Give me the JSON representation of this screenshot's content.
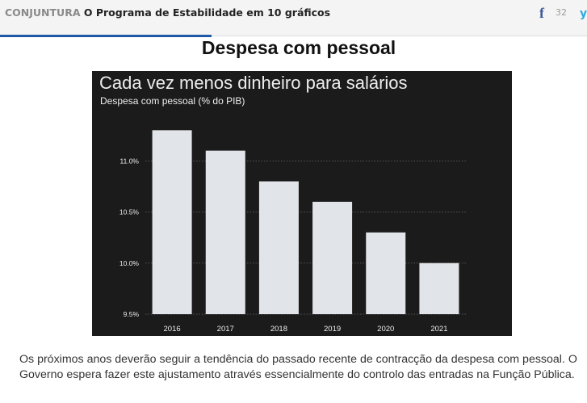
{
  "header": {
    "section": "CONJUNTURA",
    "title": "O Programa de Estabilidade em 10 gráficos",
    "facebook_count": "32"
  },
  "page_title": "Despesa com pessoal",
  "chart_data": {
    "type": "bar",
    "title": "Cada vez menos dinheiro para salários",
    "ylabel": "Despesa com pessoal (% do PIB)",
    "xlabel": "",
    "categories": [
      "2016",
      "2017",
      "2018",
      "2019",
      "2020",
      "2021"
    ],
    "values": [
      11.3,
      11.1,
      10.8,
      10.6,
      10.3,
      10.0
    ],
    "ylim": [
      9.5,
      11.5
    ],
    "yticks": [
      9.5,
      10.0,
      10.5,
      11.0
    ],
    "ytick_labels": [
      "9.5%",
      "10.0%",
      "10.5%",
      "11.0%"
    ],
    "grid": true,
    "colors": {
      "background": "#1b1b1b",
      "bar": "#e1e4e8",
      "grid": "#555555",
      "text": "#ededed"
    }
  },
  "body_text": "Os próximos anos deverão seguir a tendência do passado recente de contracção da despesa com pessoal. O Governo espera fazer este ajustamento através essencialmente do controlo das entradas na Função Pública."
}
